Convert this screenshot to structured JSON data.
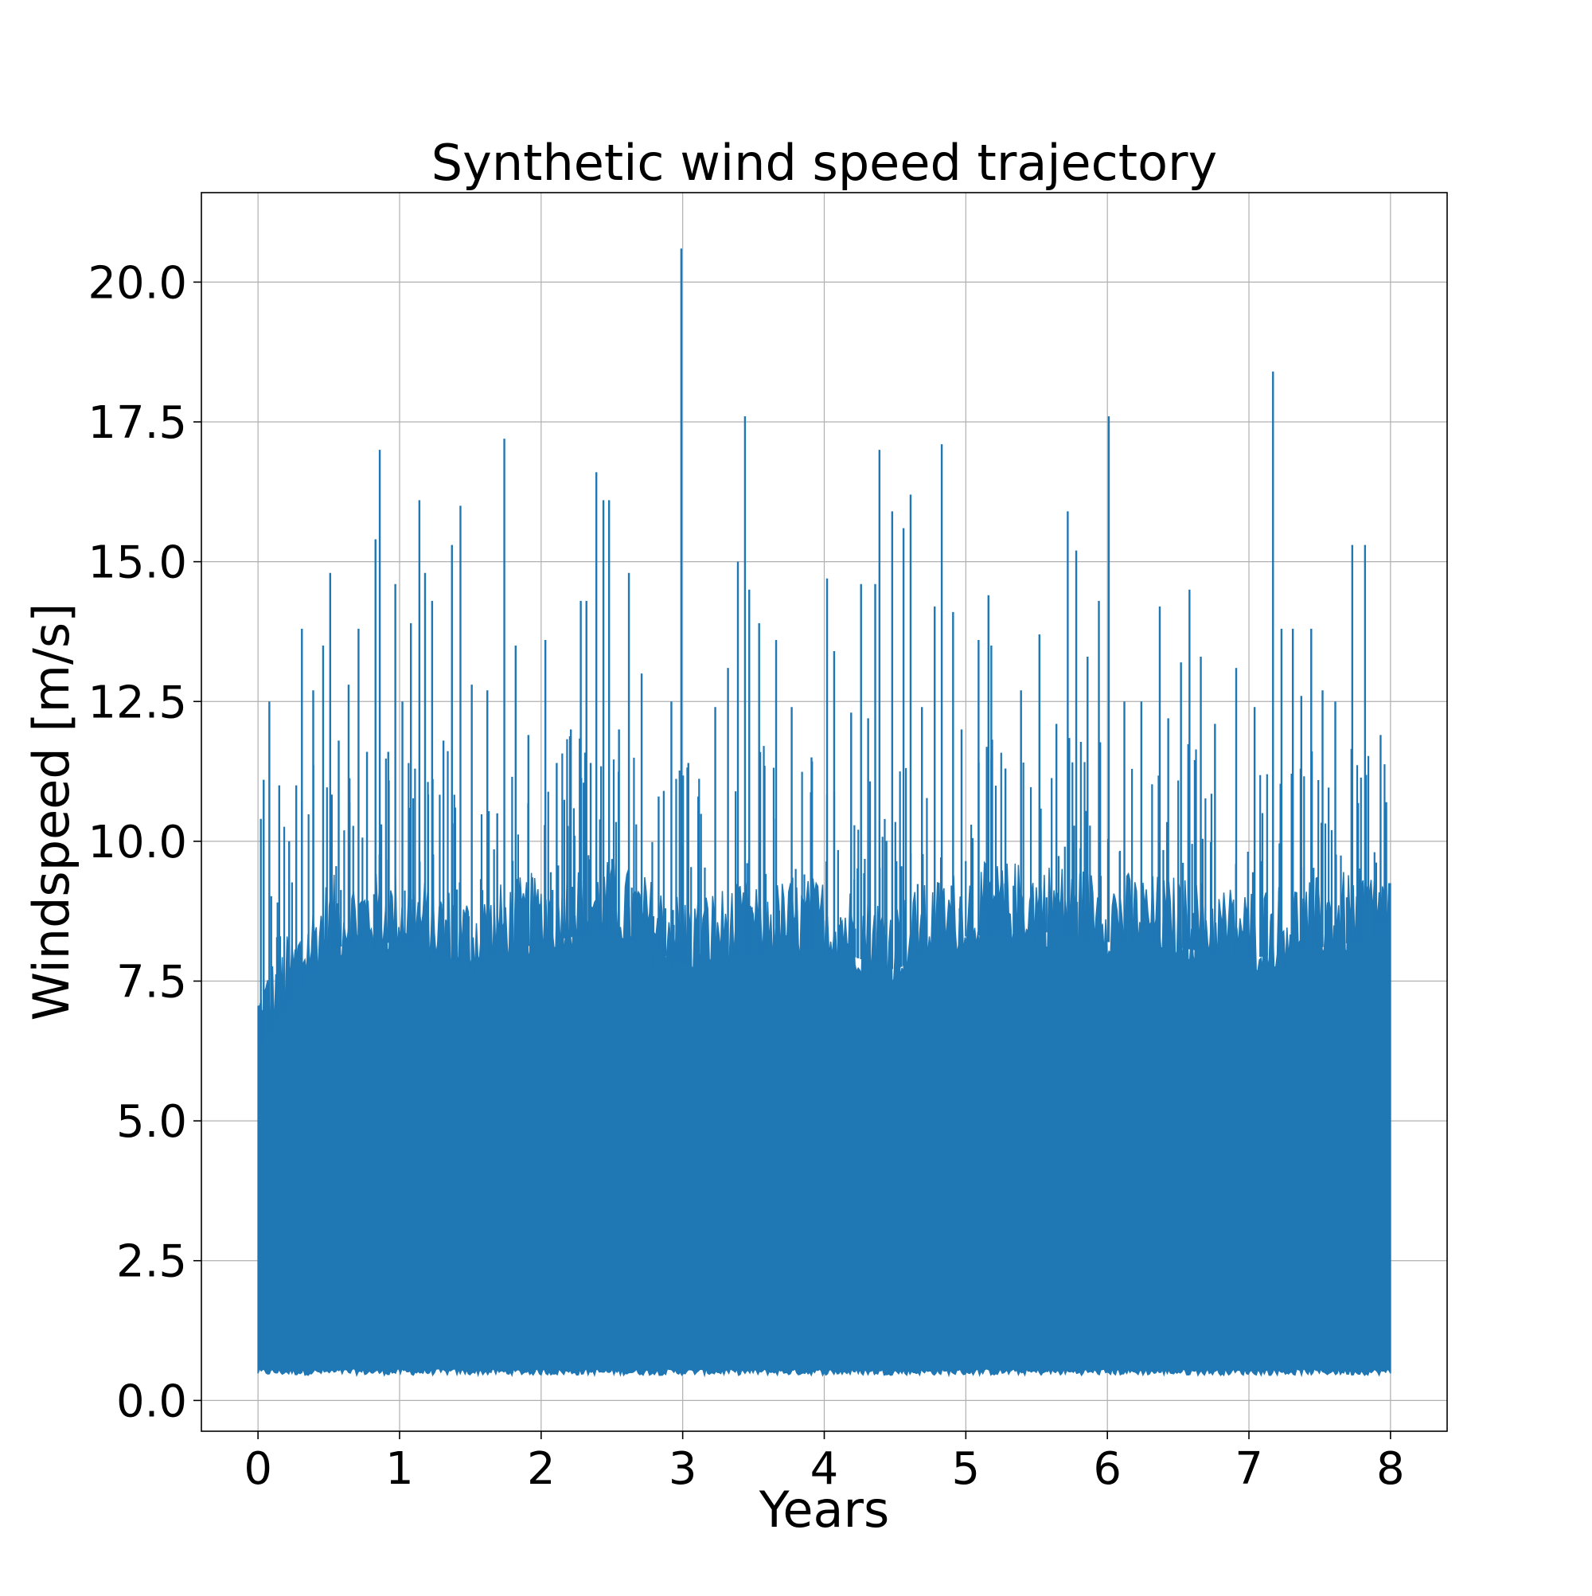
{
  "chart_data": {
    "type": "line",
    "title": "Synthetic wind speed trajectory",
    "xlabel": "Years",
    "ylabel": "Windspeed [m/s]",
    "xlim": [
      -0.4,
      8.4
    ],
    "ylim": [
      -0.55,
      21.6
    ],
    "xticks": [
      0,
      1,
      2,
      3,
      4,
      5,
      6,
      7,
      8
    ],
    "xtick_labels": [
      "0",
      "1",
      "2",
      "3",
      "4",
      "5",
      "6",
      "7",
      "8"
    ],
    "yticks": [
      0.0,
      2.5,
      5.0,
      7.5,
      10.0,
      12.5,
      15.0,
      17.5,
      20.0
    ],
    "ytick_labels": [
      "0.0",
      "2.5",
      "5.0",
      "7.5",
      "10.0",
      "12.5",
      "15.0",
      "17.5",
      "20.0"
    ],
    "grid": true,
    "legend": "none",
    "series": [
      {
        "color": "#1f77b4",
        "x_range": [
          0,
          8
        ],
        "band_min": 0.45,
        "band_top_typical": 8.5,
        "band_samples": {
          "x": [
            0.0,
            0.5,
            1.0,
            1.5,
            2.0,
            2.5,
            3.0,
            3.5,
            4.0,
            4.5,
            5.0,
            5.5,
            6.0,
            6.5,
            7.0,
            7.5,
            8.0
          ],
          "y_top": [
            6.8,
            8.6,
            8.7,
            8.3,
            8.7,
            8.9,
            8.3,
            8.5,
            8.6,
            8.2,
            8.8,
            8.9,
            8.7,
            8.6,
            8.4,
            8.6,
            8.8
          ]
        },
        "peaks": {
          "x": [
            0.02,
            0.04,
            0.08,
            0.15,
            0.22,
            0.27,
            0.31,
            0.39,
            0.46,
            0.51,
            0.57,
            0.64,
            0.71,
            0.77,
            0.83,
            0.86,
            0.92,
            0.97,
            1.02,
            1.08,
            1.14,
            1.18,
            1.23,
            1.31,
            1.37,
            1.43,
            1.51,
            1.62,
            1.69,
            1.74,
            1.82,
            1.91,
            2.03,
            2.11,
            2.21,
            2.28,
            2.32,
            2.35,
            2.39,
            2.44,
            2.48,
            2.55,
            2.62,
            2.71,
            2.83,
            2.92,
            2.99,
            3.04,
            3.11,
            3.23,
            3.32,
            3.39,
            3.44,
            3.47,
            3.54,
            3.66,
            3.77,
            3.91,
            4.02,
            4.07,
            4.19,
            4.26,
            4.31,
            4.36,
            4.39,
            4.48,
            4.56,
            4.61,
            4.69,
            4.78,
            4.83,
            4.91,
            4.97,
            5.09,
            5.16,
            5.18,
            5.28,
            5.39,
            5.52,
            5.64,
            5.72,
            5.78,
            5.86,
            5.94,
            6.01,
            6.12,
            6.24,
            6.37,
            6.43,
            6.52,
            6.58,
            6.66,
            6.76,
            6.91,
            7.04,
            7.17,
            7.23,
            7.31,
            7.37,
            7.44,
            7.52,
            7.61,
            7.73,
            7.82,
            7.93,
            7.97
          ],
          "y": [
            10.4,
            11.1,
            12.5,
            11.0,
            10.0,
            11.0,
            13.8,
            12.7,
            13.5,
            14.8,
            11.8,
            12.8,
            13.8,
            11.6,
            15.4,
            17.0,
            11.6,
            14.6,
            12.5,
            13.9,
            16.1,
            14.8,
            14.3,
            11.8,
            15.3,
            16.0,
            12.8,
            12.7,
            10.5,
            17.2,
            13.5,
            11.9,
            13.6,
            11.4,
            12.0,
            14.3,
            14.3,
            11.4,
            16.6,
            16.1,
            16.1,
            12.0,
            14.8,
            13.0,
            10.8,
            12.5,
            20.6,
            11.4,
            10.8,
            12.4,
            13.1,
            15.0,
            17.6,
            14.5,
            13.9,
            13.6,
            12.4,
            11.5,
            14.7,
            13.4,
            12.3,
            14.6,
            12.2,
            14.6,
            17.0,
            15.9,
            15.6,
            16.2,
            12.4,
            14.2,
            17.1,
            14.1,
            12.0,
            13.6,
            14.4,
            13.5,
            11.3,
            12.7,
            13.7,
            12.1,
            15.9,
            15.2,
            13.3,
            14.3,
            17.6,
            12.5,
            12.5,
            14.2,
            12.2,
            13.2,
            14.5,
            13.3,
            12.1,
            13.1,
            12.4,
            18.4,
            13.8,
            13.8,
            12.6,
            13.8,
            12.7,
            12.5,
            15.3,
            15.3,
            11.9,
            10.7
          ]
        }
      }
    ]
  }
}
